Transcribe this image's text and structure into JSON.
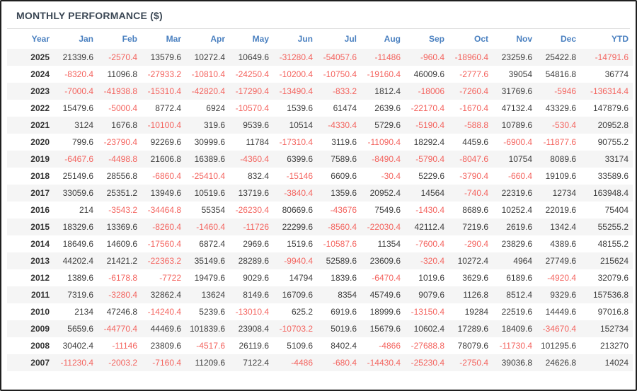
{
  "page": {
    "title": "MONTHLY PERFORMANCE ($)"
  },
  "colors": {
    "title_text": "#3b4754",
    "header_text": "#4a80c0",
    "positive_value": "#3e3e3e",
    "negative_value": "#f4645f",
    "row_stripe": "#f5f5f5",
    "frame_border": "#1f1f1f"
  },
  "table": {
    "columns": [
      "Year",
      "Jan",
      "Feb",
      "Mar",
      "Apr",
      "May",
      "Jun",
      "Jul",
      "Aug",
      "Sep",
      "Oct",
      "Nov",
      "Dec",
      "YTD"
    ],
    "rows": [
      {
        "year": "2025",
        "values": [
          "21339.6",
          "-2570.4",
          "13579.6",
          "10272.4",
          "10649.6",
          "-31280.4",
          "-54057.6",
          "-11486",
          "-960.4",
          "-18960.4",
          "23259.6",
          "25422.8",
          "-14791.6"
        ]
      },
      {
        "year": "2024",
        "values": [
          "-8320.4",
          "11096.8",
          "-27933.2",
          "-10810.4",
          "-24250.4",
          "-10200.4",
          "-10750.4",
          "-19160.4",
          "46009.6",
          "-2777.6",
          "39054",
          "54816.8",
          "36774"
        ]
      },
      {
        "year": "2023",
        "values": [
          "-7000.4",
          "-41938.8",
          "-15310.4",
          "-42820.4",
          "-17290.4",
          "-13490.4",
          "-833.2",
          "1812.4",
          "-18006",
          "-7260.4",
          "31769.6",
          "-5946",
          "-136314.4"
        ]
      },
      {
        "year": "2022",
        "values": [
          "15479.6",
          "-5000.4",
          "8772.4",
          "6924",
          "-10570.4",
          "1539.6",
          "61474",
          "2639.6",
          "-22170.4",
          "-1670.4",
          "47132.4",
          "43329.6",
          "147879.6"
        ]
      },
      {
        "year": "2021",
        "values": [
          "3124",
          "1676.8",
          "-10100.4",
          "319.6",
          "9539.6",
          "10514",
          "-4330.4",
          "5729.6",
          "-5190.4",
          "-588.8",
          "10789.6",
          "-530.4",
          "20952.8"
        ]
      },
      {
        "year": "2020",
        "values": [
          "799.6",
          "-23790.4",
          "92269.6",
          "30999.6",
          "11784",
          "-17310.4",
          "3119.6",
          "-11090.4",
          "18292.4",
          "4459.6",
          "-6900.4",
          "-11877.6",
          "90755.2"
        ]
      },
      {
        "year": "2019",
        "values": [
          "-6467.6",
          "-4498.8",
          "21606.8",
          "16389.6",
          "-4360.4",
          "6399.6",
          "7589.6",
          "-8490.4",
          "-5790.4",
          "-8047.6",
          "10754",
          "8089.6",
          "33174"
        ]
      },
      {
        "year": "2018",
        "values": [
          "25149.6",
          "28556.8",
          "-6860.4",
          "-25410.4",
          "832.4",
          "-15146",
          "6609.6",
          "-30.4",
          "5229.6",
          "-3790.4",
          "-660.4",
          "19109.6",
          "33589.6"
        ]
      },
      {
        "year": "2017",
        "values": [
          "33059.6",
          "25351.2",
          "13949.6",
          "10519.6",
          "13719.6",
          "-3840.4",
          "1359.6",
          "20952.4",
          "14564",
          "-740.4",
          "22319.6",
          "12734",
          "163948.4"
        ]
      },
      {
        "year": "2016",
        "values": [
          "214",
          "-3543.2",
          "-34464.8",
          "55354",
          "-26230.4",
          "80669.6",
          "-43676",
          "7549.6",
          "-1430.4",
          "8689.6",
          "10252.4",
          "22019.6",
          "75404"
        ]
      },
      {
        "year": "2015",
        "values": [
          "18329.6",
          "13369.6",
          "-8260.4",
          "-1460.4",
          "-11726",
          "22299.6",
          "-8560.4",
          "-22030.4",
          "42112.4",
          "7219.6",
          "2619.6",
          "1342.4",
          "55255.2"
        ]
      },
      {
        "year": "2014",
        "values": [
          "18649.6",
          "14609.6",
          "-17560.4",
          "6872.4",
          "2969.6",
          "1519.6",
          "-10587.6",
          "11354",
          "-7600.4",
          "-290.4",
          "23829.6",
          "4389.6",
          "48155.2"
        ]
      },
      {
        "year": "2013",
        "values": [
          "44202.4",
          "21421.2",
          "-22363.2",
          "35149.6",
          "28289.6",
          "-9940.4",
          "52589.6",
          "23609.6",
          "-320.4",
          "10272.4",
          "4964",
          "27749.6",
          "215624"
        ]
      },
      {
        "year": "2012",
        "values": [
          "1389.6",
          "-6178.8",
          "-7722",
          "19479.6",
          "9029.6",
          "14794",
          "1839.6",
          "-6470.4",
          "1019.6",
          "3629.6",
          "6189.6",
          "-4920.4",
          "32079.6"
        ]
      },
      {
        "year": "2011",
        "values": [
          "7319.6",
          "-3280.4",
          "32862.4",
          "13624",
          "8149.6",
          "16709.6",
          "8354",
          "45749.6",
          "9079.6",
          "1126.8",
          "8512.4",
          "9329.6",
          "157536.8"
        ]
      },
      {
        "year": "2010",
        "values": [
          "2134",
          "47246.8",
          "-14240.4",
          "5239.6",
          "-13010.4",
          "625.2",
          "6919.6",
          "18999.6",
          "-13150.4",
          "19284",
          "22519.6",
          "14449.6",
          "97016.8"
        ]
      },
      {
        "year": "2009",
        "values": [
          "5659.6",
          "-44770.4",
          "44469.6",
          "101839.6",
          "23908.4",
          "-10703.2",
          "5019.6",
          "15679.6",
          "10602.4",
          "17289.6",
          "18409.6",
          "-34670.4",
          "152734"
        ]
      },
      {
        "year": "2008",
        "values": [
          "30402.4",
          "-11146",
          "23809.6",
          "-4517.6",
          "26119.6",
          "5109.6",
          "8402.4",
          "-4866",
          "-27688.8",
          "78079.6",
          "-11730.4",
          "101295.6",
          "213270"
        ]
      },
      {
        "year": "2007",
        "values": [
          "-11230.4",
          "-2003.2",
          "-7160.4",
          "11209.6",
          "7122.4",
          "-4486",
          "-680.4",
          "-14430.4",
          "-25230.4",
          "-2750.4",
          "39036.8",
          "24626.8",
          "14024"
        ]
      }
    ]
  }
}
